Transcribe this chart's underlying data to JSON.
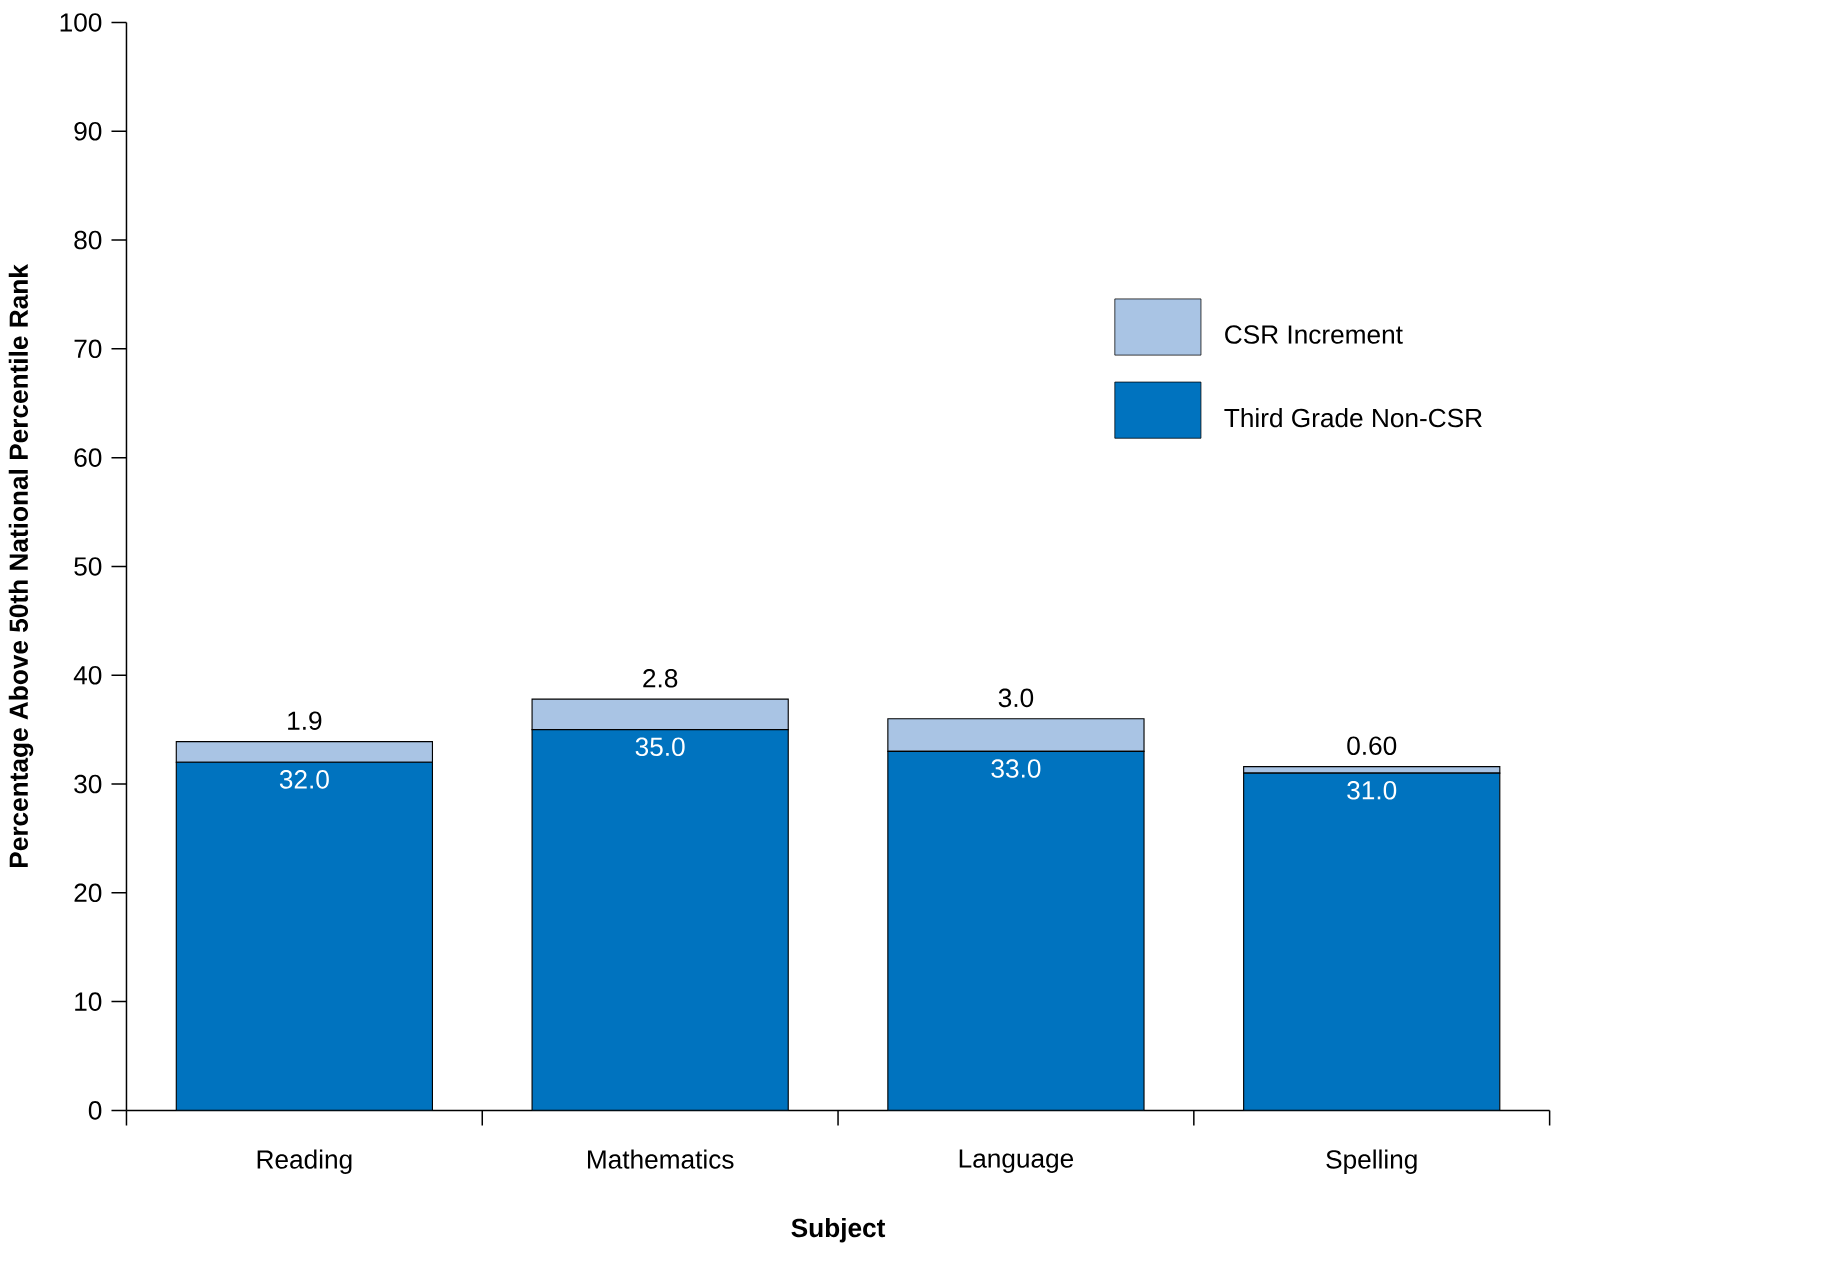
{
  "chart_data": {
    "type": "bar",
    "stacked": true,
    "xlabel": "Subject",
    "ylabel": "Percentage Above 50th National Percentile Rank",
    "categories": [
      "Reading",
      "Mathematics",
      "Language",
      "Spelling"
    ],
    "series": [
      {
        "name": "Third Grade Non-CSR",
        "color": "#0073bf",
        "values": [
          32.0,
          35.0,
          33.0,
          31.0
        ],
        "value_labels": [
          "32.0",
          "35.0",
          "33.0",
          "31.0"
        ]
      },
      {
        "name": "CSR Increment",
        "color": "#a9c4e4",
        "values": [
          1.9,
          2.8,
          3.0,
          0.6
        ],
        "value_labels": [
          "1.9",
          "2.8",
          "3.0",
          "0.60"
        ]
      }
    ],
    "ylim": [
      0,
      100
    ],
    "yticks": [
      0,
      10,
      20,
      30,
      40,
      50,
      60,
      70,
      80,
      90,
      100
    ],
    "grid": false,
    "legend": "right"
  }
}
